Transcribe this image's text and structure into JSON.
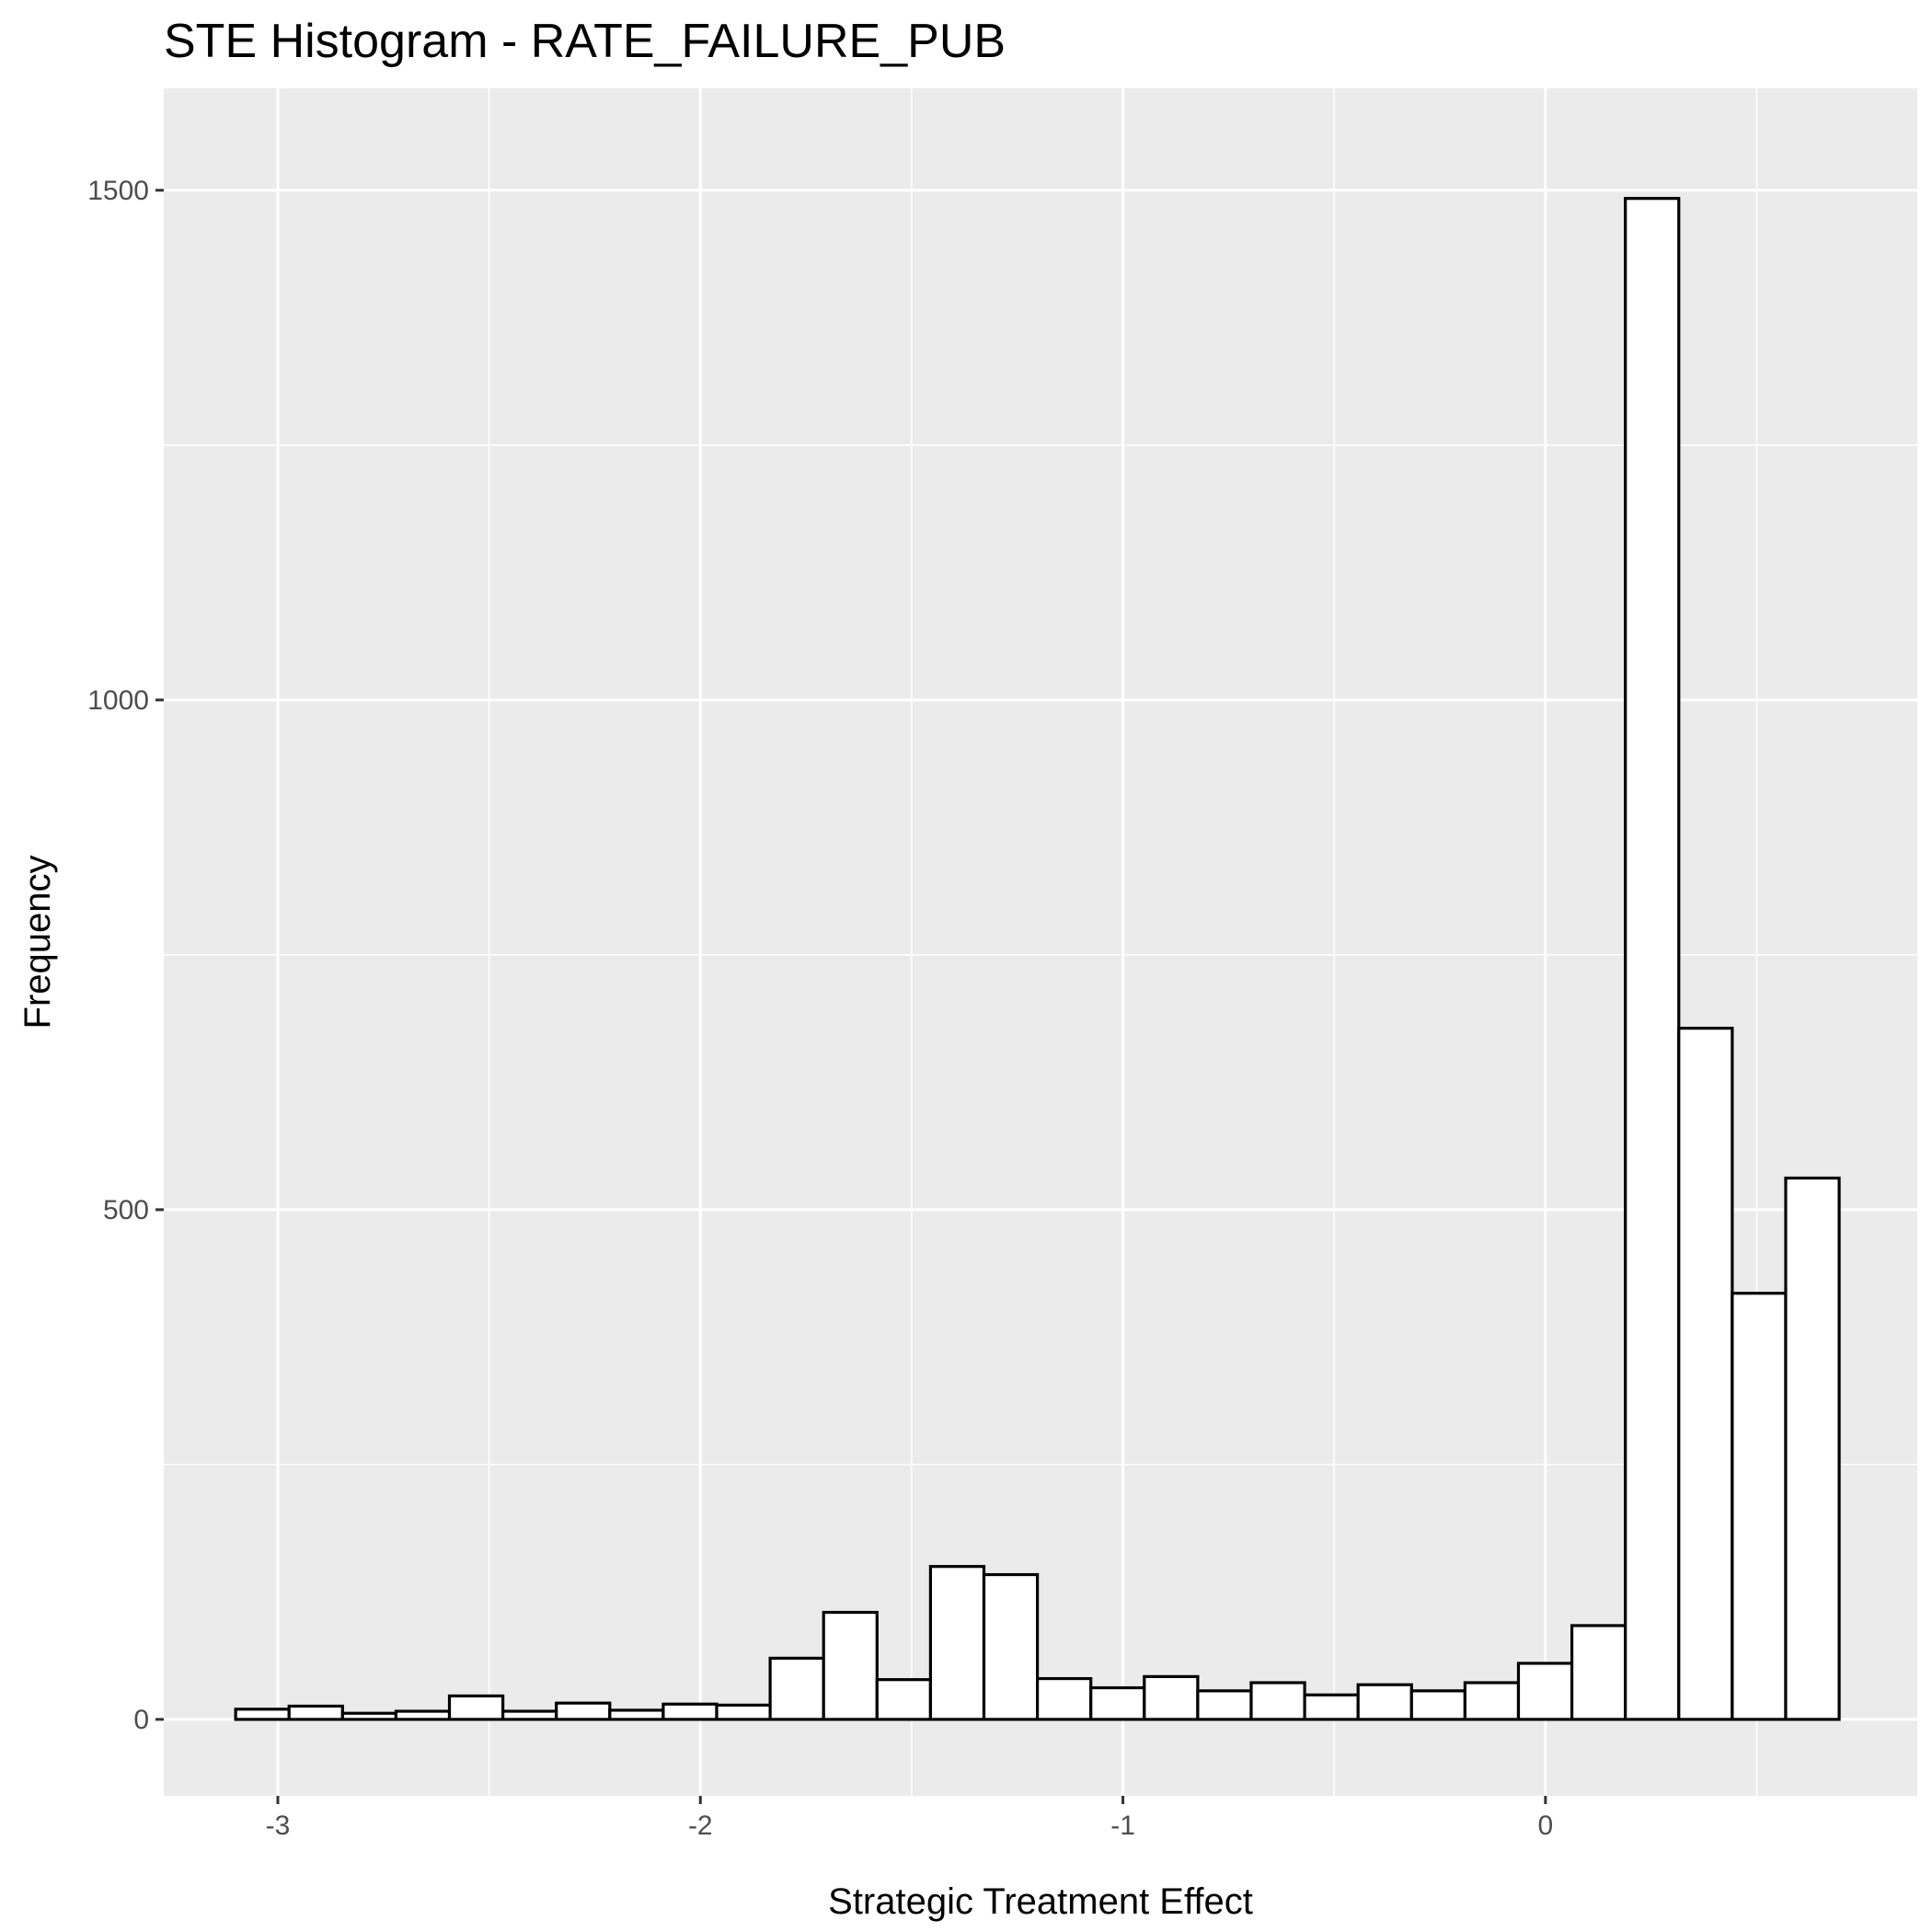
{
  "chart_data": {
    "type": "bar",
    "title": "STE Histogram -  RATE_FAILURE_PUB",
    "xlabel": "Strategic Treatment Effect",
    "ylabel": "Frequency",
    "xlim": [
      -3.27,
      0.88
    ],
    "ylim": [
      -75,
      1600
    ],
    "x_ticks": [
      -3,
      -2,
      -1,
      0
    ],
    "x_tick_labels": [
      "-3",
      "-2",
      "-1",
      "0"
    ],
    "y_ticks": [
      0,
      500,
      1000,
      1500
    ],
    "y_tick_labels": [
      "0",
      "500",
      "1000",
      "1500"
    ],
    "grid": true,
    "bin_width": 0.1265,
    "bins": [
      {
        "x0": -3.0999,
        "x1": -2.9734,
        "count": 10
      },
      {
        "x0": -2.9734,
        "x1": -2.8469,
        "count": 13
      },
      {
        "x0": -2.8469,
        "x1": -2.7204,
        "count": 6
      },
      {
        "x0": -2.7204,
        "x1": -2.5939,
        "count": 8
      },
      {
        "x0": -2.5939,
        "x1": -2.4674,
        "count": 23
      },
      {
        "x0": -2.4674,
        "x1": -2.3409,
        "count": 8
      },
      {
        "x0": -2.3409,
        "x1": -2.2144,
        "count": 16
      },
      {
        "x0": -2.2144,
        "x1": -2.0879,
        "count": 9
      },
      {
        "x0": -2.0879,
        "x1": -1.9614,
        "count": 15
      },
      {
        "x0": -1.9614,
        "x1": -1.8349,
        "count": 14
      },
      {
        "x0": -1.8349,
        "x1": -1.7084,
        "count": 60
      },
      {
        "x0": -1.7084,
        "x1": -1.5819,
        "count": 105
      },
      {
        "x0": -1.5819,
        "x1": -1.4554,
        "count": 39
      },
      {
        "x0": -1.4554,
        "x1": -1.3289,
        "count": 150
      },
      {
        "x0": -1.3289,
        "x1": -1.2024,
        "count": 142
      },
      {
        "x0": -1.2024,
        "x1": -1.0759,
        "count": 40
      },
      {
        "x0": -1.0759,
        "x1": -0.9494,
        "count": 31
      },
      {
        "x0": -0.9494,
        "x1": -0.8229,
        "count": 42
      },
      {
        "x0": -0.8229,
        "x1": -0.6964,
        "count": 28
      },
      {
        "x0": -0.6964,
        "x1": -0.5699,
        "count": 36
      },
      {
        "x0": -0.5699,
        "x1": -0.4434,
        "count": 24
      },
      {
        "x0": -0.4434,
        "x1": -0.3169,
        "count": 34
      },
      {
        "x0": -0.3169,
        "x1": -0.1904,
        "count": 28
      },
      {
        "x0": -0.1904,
        "x1": -0.0639,
        "count": 36
      },
      {
        "x0": -0.0639,
        "x1": 0.0626,
        "count": 55
      },
      {
        "x0": 0.0626,
        "x1": 0.1891,
        "count": 92
      },
      {
        "x0": 0.1891,
        "x1": 0.3156,
        "count": 1492
      },
      {
        "x0": 0.3156,
        "x1": 0.4421,
        "count": 678
      },
      {
        "x0": 0.4421,
        "x1": 0.5686,
        "count": 418
      },
      {
        "x0": 0.5686,
        "x1": 0.6951,
        "count": 531
      }
    ]
  }
}
